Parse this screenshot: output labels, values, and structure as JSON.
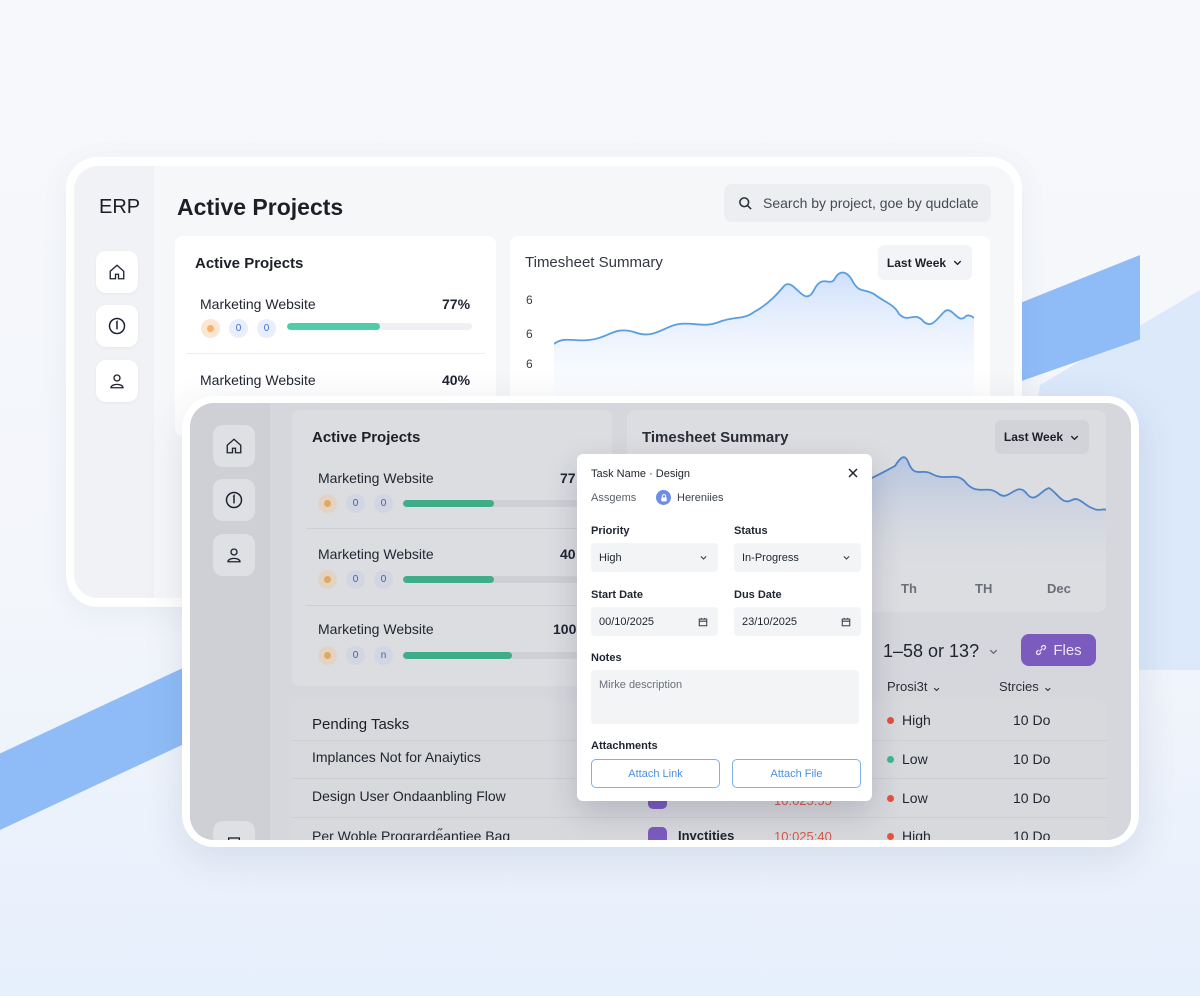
{
  "colors": {
    "accent_green": "#4fcda8",
    "accent_blue": "#8fbcf7",
    "purple": "#7b5bbe",
    "alert_red": "#d45b48"
  },
  "back": {
    "logo": "ERP",
    "page_title": "Active Projects",
    "search_placeholder": "Search by project, goe by qudclate",
    "projects_card_title": "Active Projects",
    "projects": [
      {
        "name": "Marketing Website",
        "percent": "77%",
        "progress": 0.5,
        "badges": [
          "0",
          "0"
        ]
      },
      {
        "name": "Marketing Website",
        "percent": "40%"
      }
    ],
    "timesheet_title": "Timesheet Summary",
    "period": "Last Week",
    "y_ticks": [
      "6",
      "6",
      "6"
    ]
  },
  "front": {
    "projects_card_title": "Active Projects",
    "projects": [
      {
        "name": "Marketing Website",
        "percent": "77",
        "progress": 0.52,
        "badges": [
          "0",
          "0"
        ]
      },
      {
        "name": "Marketing Website",
        "percent": "40",
        "progress": 0.52,
        "badges": [
          "0",
          "0"
        ]
      },
      {
        "name": "Marketing Website",
        "percent": "100",
        "progress": 0.62,
        "badges": [
          "0",
          "n"
        ]
      }
    ],
    "timesheet_title": "Timesheet Summary",
    "period": "Last Week",
    "x_ticks": [
      "Th",
      "TH",
      "Dec"
    ],
    "range_label": "1–58 or 13?",
    "files_button": "Fles",
    "pending_title": "Pending Tasks",
    "columns": {
      "priority": "Prosi3t",
      "status": "Strcies"
    },
    "tasks": [
      {
        "name": "Implances Not for Anaiytics",
        "priority": "High",
        "priority_color": "#e0533f",
        "status": "10 Do"
      },
      {
        "name": "Design User Ondaanbling Flow",
        "priority": "Low",
        "priority_color": "#3db88b",
        "status": "10 Do",
        "time": "10:025:55"
      },
      {
        "name": "Per Woble Prograrde̋antiee Bag",
        "tag": "Invctities",
        "time": "10:025:40",
        "priority": "High",
        "priority_color": "#e0533f",
        "status": "10 Do"
      }
    ],
    "middle_priority": {
      "priority": "Low",
      "priority_color": "#e0533f",
      "status": "10 Do"
    }
  },
  "modal": {
    "title": "Task Name · Design",
    "assignee_label": "Assgems",
    "assignee_name": "Hereniies",
    "priority_label": "Priority",
    "priority_value": "High",
    "status_label": "Status",
    "status_value": "In-Progress",
    "start_label": "Start Date",
    "start_value": "00/10/2025",
    "due_label": "Dus Date",
    "due_value": "23/10/2025",
    "notes_label": "Notes",
    "notes_placeholder": "Mirke description",
    "attachments_label": "Attachments",
    "attach_link": "Attach Link",
    "attach_file": "Attach File"
  }
}
